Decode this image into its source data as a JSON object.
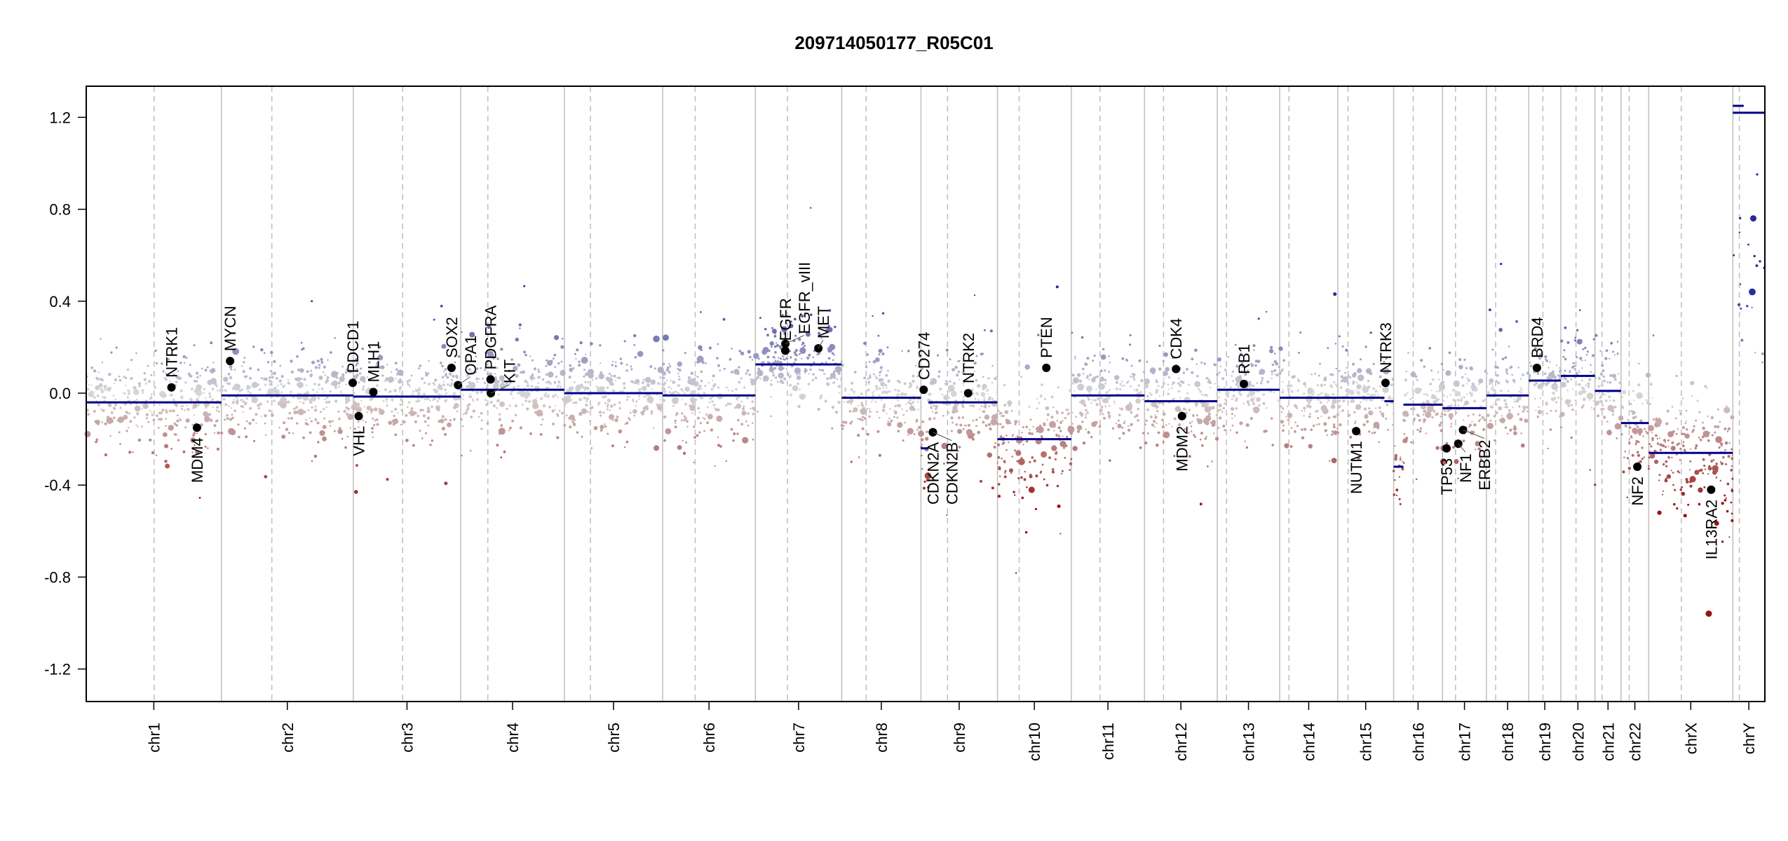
{
  "chart_data": {
    "type": "scatter",
    "title": "209714050177_R05C01",
    "xlabel": "",
    "ylabel": "",
    "ylim": [
      -1.35,
      1.35
    ],
    "yticks": [
      "-1.2",
      "-0.8",
      "-0.4",
      "0.0",
      "0.4",
      "0.8",
      "1.2"
    ],
    "grid": false,
    "colors": {
      "segment": "#00008b",
      "gain": "#2a2a9a",
      "loss": "#9a1a1a",
      "neutral": "#d0d0d0",
      "gene": "#000000",
      "chrom_line": "#bebebe",
      "centromere_line": "#bebebe"
    },
    "chromosomes": [
      {
        "name": "chr1",
        "length": 249,
        "centromere": 125
      },
      {
        "name": "chr2",
        "length": 243,
        "centromere": 93
      },
      {
        "name": "chr3",
        "length": 198,
        "centromere": 91
      },
      {
        "name": "chr4",
        "length": 191,
        "centromere": 50
      },
      {
        "name": "chr5",
        "length": 181,
        "centromere": 48
      },
      {
        "name": "chr6",
        "length": 171,
        "centromere": 60
      },
      {
        "name": "chr7",
        "length": 159,
        "centromere": 59
      },
      {
        "name": "chr8",
        "length": 146,
        "centromere": 45
      },
      {
        "name": "chr9",
        "length": 141,
        "centromere": 49
      },
      {
        "name": "chr10",
        "length": 136,
        "centromere": 40
      },
      {
        "name": "chr11",
        "length": 135,
        "centromere": 53
      },
      {
        "name": "chr12",
        "length": 134,
        "centromere": 35
      },
      {
        "name": "chr13",
        "length": 115,
        "centromere": 17
      },
      {
        "name": "chr14",
        "length": 107,
        "centromere": 17
      },
      {
        "name": "chr15",
        "length": 103,
        "centromere": 19
      },
      {
        "name": "chr16",
        "length": 90,
        "centromere": 36
      },
      {
        "name": "chr17",
        "length": 81,
        "centromere": 24
      },
      {
        "name": "chr18",
        "length": 78,
        "centromere": 17
      },
      {
        "name": "chr19",
        "length": 59,
        "centromere": 26
      },
      {
        "name": "chr20",
        "length": 63,
        "centromere": 28
      },
      {
        "name": "chr21",
        "length": 48,
        "centromere": 13
      },
      {
        "name": "chr22",
        "length": 51,
        "centromere": 15
      },
      {
        "name": "chrX",
        "length": 155,
        "centromere": 60
      },
      {
        "name": "chrY",
        "length": 59,
        "centromere": 12
      }
    ],
    "segments": [
      {
        "chr": "chr1",
        "start": 0,
        "end": 249,
        "value": -0.04
      },
      {
        "chr": "chr2",
        "start": 0,
        "end": 243,
        "value": -0.01
      },
      {
        "chr": "chr3",
        "start": 0,
        "end": 198,
        "value": -0.015
      },
      {
        "chr": "chr4",
        "start": 0,
        "end": 191,
        "value": 0.015
      },
      {
        "chr": "chr5",
        "start": 0,
        "end": 181,
        "value": 0.0
      },
      {
        "chr": "chr6",
        "start": 0,
        "end": 171,
        "value": -0.01
      },
      {
        "chr": "chr7",
        "start": 0,
        "end": 159,
        "value": 0.125
      },
      {
        "chr": "chr8",
        "start": 0,
        "end": 146,
        "value": -0.02
      },
      {
        "chr": "chr9",
        "start": 0,
        "end": 14,
        "value": -0.24
      },
      {
        "chr": "chr9",
        "start": 14,
        "end": 141,
        "value": -0.04
      },
      {
        "chr": "chr10",
        "start": 0,
        "end": 136,
        "value": -0.2
      },
      {
        "chr": "chr11",
        "start": 0,
        "end": 135,
        "value": -0.01
      },
      {
        "chr": "chr12",
        "start": 0,
        "end": 134,
        "value": -0.035
      },
      {
        "chr": "chr13",
        "start": 0,
        "end": 115,
        "value": 0.015
      },
      {
        "chr": "chr14",
        "start": 0,
        "end": 107,
        "value": -0.02
      },
      {
        "chr": "chr15",
        "start": 0,
        "end": 86,
        "value": -0.02
      },
      {
        "chr": "chr15",
        "start": 86,
        "end": 103,
        "value": -0.035
      },
      {
        "chr": "chr16",
        "start": 0,
        "end": 18,
        "value": -0.32
      },
      {
        "chr": "chr16",
        "start": 18,
        "end": 90,
        "value": -0.05
      },
      {
        "chr": "chr17",
        "start": 0,
        "end": 81,
        "value": -0.065
      },
      {
        "chr": "chr18",
        "start": 0,
        "end": 78,
        "value": -0.01
      },
      {
        "chr": "chr19",
        "start": 0,
        "end": 59,
        "value": 0.055
      },
      {
        "chr": "chr20",
        "start": 0,
        "end": 63,
        "value": 0.075
      },
      {
        "chr": "chr21",
        "start": 0,
        "end": 48,
        "value": 0.01
      },
      {
        "chr": "chr22",
        "start": 0,
        "end": 51,
        "value": -0.13
      },
      {
        "chr": "chrX",
        "start": 0,
        "end": 155,
        "value": -0.26
      },
      {
        "chr": "chrY",
        "start": 0,
        "end": 20,
        "value": 1.25
      },
      {
        "chr": "chrY",
        "start": 0,
        "end": 59,
        "value": 1.22
      }
    ],
    "genes": [
      {
        "name": "NTRK1",
        "chr": "chr1",
        "pos": 157,
        "value": 0.025
      },
      {
        "name": "MDM4",
        "chr": "chr1",
        "pos": 204,
        "value": -0.15
      },
      {
        "name": "MYCN",
        "chr": "chr2",
        "pos": 16,
        "value": 0.14
      },
      {
        "name": "PDCD1",
        "chr": "chr2",
        "pos": 242,
        "value": 0.045
      },
      {
        "name": "VHL",
        "chr": "chr3",
        "pos": 10,
        "value": -0.1
      },
      {
        "name": "MLH1",
        "chr": "chr3",
        "pos": 37,
        "value": 0.005
      },
      {
        "name": "SOX2",
        "chr": "chr3",
        "pos": 181,
        "value": 0.11
      },
      {
        "name": "OPA1",
        "chr": "chr3",
        "pos": 193,
        "value": 0.035
      },
      {
        "name": "PDGFRA",
        "chr": "chr4",
        "pos": 55,
        "value": 0.06
      },
      {
        "name": "KIT",
        "chr": "chr4",
        "pos": 55.5,
        "value": 0.0
      },
      {
        "name": "EGFR",
        "chr": "chr7",
        "pos": 55,
        "value": 0.185
      },
      {
        "name": "EGFR_vIII",
        "chr": "chr7",
        "pos": 55.2,
        "value": 0.215
      },
      {
        "name": "MET",
        "chr": "chr7",
        "pos": 116,
        "value": 0.195
      },
      {
        "name": "CD274",
        "chr": "chr9",
        "pos": 5,
        "value": 0.015
      },
      {
        "name": "CDKN2A",
        "chr": "chr9",
        "pos": 21.9,
        "value": -0.17
      },
      {
        "name": "CDKN2B",
        "chr": "chr9",
        "pos": 22.0,
        "value": -0.17
      },
      {
        "name": "NTRK2",
        "chr": "chr9",
        "pos": 87,
        "value": 0.0
      },
      {
        "name": "PTEN",
        "chr": "chr10",
        "pos": 90,
        "value": 0.11
      },
      {
        "name": "CDK4",
        "chr": "chr12",
        "pos": 58,
        "value": 0.105
      },
      {
        "name": "MDM2",
        "chr": "chr12",
        "pos": 69,
        "value": -0.1
      },
      {
        "name": "RB1",
        "chr": "chr13",
        "pos": 49,
        "value": 0.04
      },
      {
        "name": "NUTM1",
        "chr": "chr15",
        "pos": 34,
        "value": -0.165
      },
      {
        "name": "NTRK3",
        "chr": "chr15",
        "pos": 88,
        "value": 0.045
      },
      {
        "name": "TP53",
        "chr": "chr17",
        "pos": 7.5,
        "value": -0.24
      },
      {
        "name": "NF1",
        "chr": "chr17",
        "pos": 29,
        "value": -0.22
      },
      {
        "name": "ERBB2",
        "chr": "chr17",
        "pos": 37.8,
        "value": -0.16
      },
      {
        "name": "BRD4",
        "chr": "chr19",
        "pos": 15,
        "value": 0.11
      },
      {
        "name": "NF2",
        "chr": "chr22",
        "pos": 30,
        "value": -0.32
      },
      {
        "name": "IL13RA2",
        "chr": "chrX",
        "pos": 115,
        "value": -0.42
      }
    ]
  }
}
